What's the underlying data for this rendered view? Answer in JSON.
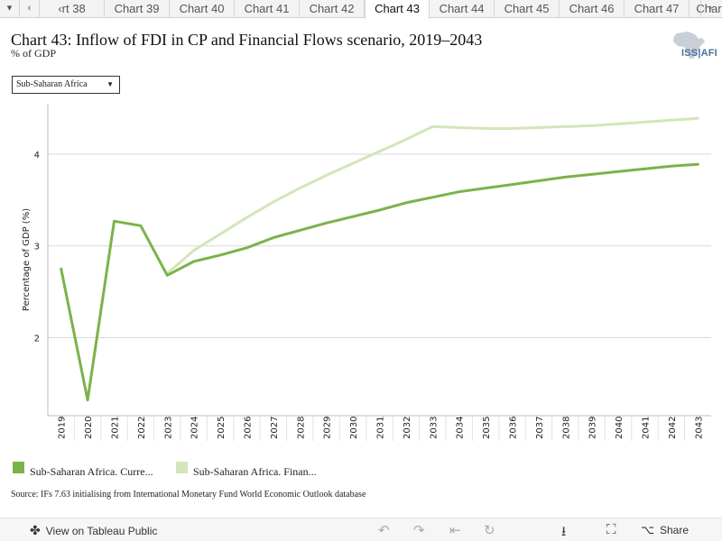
{
  "tabs": {
    "items": [
      "‹rt 38",
      "Chart 39",
      "Chart 40",
      "Chart 41",
      "Chart 42",
      "Chart 43",
      "Chart 44",
      "Chart 45",
      "Chart 46",
      "Chart 47",
      "Char"
    ],
    "active_index": 5,
    "menu_glyph": "▾",
    "prev_glyph": "‹",
    "next_glyph": "›"
  },
  "header": {
    "title": "Chart 43: Inflow of FDI in CP and Financial Flows scenario, 2019–2043",
    "subtitle": "% of GDP",
    "logo_text": "ISS|AFI",
    "logo_icon": "africa-map-icon"
  },
  "filter": {
    "selected": "Sub-Saharan Africa",
    "caret": "▼"
  },
  "chart_data": {
    "type": "line",
    "ylabel": "Percentage of GDP (%)",
    "xlabel": "",
    "ylim": [
      1.15,
      4.55
    ],
    "yticks": [
      2,
      3,
      4
    ],
    "grid": true,
    "x": [
      2019,
      2020,
      2021,
      2022,
      2023,
      2024,
      2025,
      2026,
      2027,
      2028,
      2029,
      2030,
      2031,
      2032,
      2033,
      2034,
      2035,
      2036,
      2037,
      2038,
      2039,
      2040,
      2041,
      2042,
      2043
    ],
    "series": [
      {
        "name": "Sub-Saharan Africa. Curre...",
        "color": "#7bb24a",
        "values": [
          2.75,
          1.32,
          3.27,
          3.22,
          2.68,
          2.83,
          2.9,
          2.98,
          3.09,
          3.17,
          3.25,
          3.32,
          3.39,
          3.47,
          3.53,
          3.59,
          3.63,
          3.67,
          3.71,
          3.75,
          3.78,
          3.81,
          3.84,
          3.87,
          3.89
        ]
      },
      {
        "name": "Sub-Saharan Africa. Finan...",
        "color": "#d2e6b9",
        "values": [
          null,
          null,
          null,
          null,
          2.7,
          2.95,
          3.13,
          3.31,
          3.48,
          3.63,
          3.77,
          3.9,
          4.03,
          4.16,
          4.3,
          4.29,
          4.28,
          4.28,
          4.29,
          4.3,
          4.31,
          4.33,
          4.35,
          4.37,
          4.39
        ]
      }
    ],
    "legend_position": "bottom-left"
  },
  "source": "Source: IFs 7.63 initialising from International Monetary Fund World Economic Outlook database",
  "footer": {
    "view_label": "View on Tableau Public",
    "share_label": "Share",
    "icons": [
      "tableau-icon",
      "undo-icon",
      "redo-icon",
      "revert-icon",
      "refresh-icon",
      "download-icon",
      "fullscreen-icon",
      "share-icon"
    ]
  }
}
